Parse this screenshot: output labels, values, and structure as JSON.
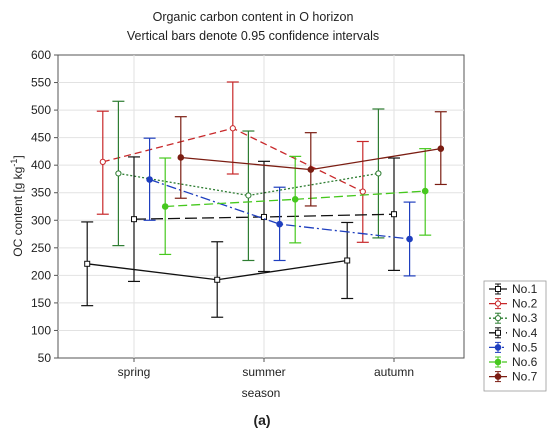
{
  "figure": {
    "caption": "(a)"
  },
  "chart_data": {
    "type": "line",
    "title": "Organic carbon content in O horizon",
    "subtitle": "Vertical bars denote 0.95 confidence intervals",
    "xlabel": "season",
    "ylabel": "OC content [g kg-1]",
    "ylabel_main": "OC content [g kg",
    "ylabel_sup": "-1",
    "ylabel_end": "]",
    "categories": [
      "spring",
      "summer",
      "autumn"
    ],
    "ylim": [
      50,
      600
    ],
    "yticks": [
      50,
      100,
      150,
      200,
      250,
      300,
      350,
      400,
      450,
      500,
      550,
      600
    ],
    "grid": true,
    "legend_placement": "right-bottom",
    "series": [
      {
        "name": "No.1",
        "color": "#111111",
        "dash": "",
        "marker": "open-square",
        "values": [
          221,
          192,
          227
        ],
        "lower": [
          145,
          124,
          158
        ],
        "upper": [
          297,
          261,
          296
        ],
        "offset": -0.36
      },
      {
        "name": "No.2",
        "color": "#c8282a",
        "dash": "7,4",
        "marker": "open-circle",
        "values": [
          406,
          467,
          352
        ],
        "lower": [
          311,
          384,
          260
        ],
        "upper": [
          498,
          551,
          443
        ],
        "offset": -0.24
      },
      {
        "name": "No.3",
        "color": "#2e7d32",
        "dash": "2,2",
        "marker": "open-circle",
        "values": [
          385,
          345,
          385
        ],
        "lower": [
          254,
          227,
          268
        ],
        "upper": [
          516,
          462,
          502
        ],
        "offset": -0.12
      },
      {
        "name": "No.4",
        "color": "#111111",
        "dash": "12,5",
        "marker": "open-square",
        "values": [
          302,
          306,
          311
        ],
        "lower": [
          189,
          207,
          209
        ],
        "upper": [
          415,
          407,
          413
        ],
        "offset": 0.0
      },
      {
        "name": "No.5",
        "color": "#1f3fbf",
        "dash": "10,3,2,3",
        "marker": "filled-circle",
        "values": [
          374,
          293,
          266
        ],
        "lower": [
          300,
          227,
          199
        ],
        "upper": [
          449,
          360,
          333
        ],
        "offset": 0.12
      },
      {
        "name": "No.6",
        "color": "#46c81e",
        "dash": "9,4",
        "marker": "filled-circle",
        "values": [
          325,
          338,
          353
        ],
        "lower": [
          238,
          259,
          273
        ],
        "upper": [
          413,
          416,
          430
        ],
        "offset": 0.24
      },
      {
        "name": "No.7",
        "color": "#7b1d12",
        "dash": "",
        "marker": "filled-circle",
        "values": [
          414,
          392,
          430
        ],
        "lower": [
          340,
          326,
          365
        ],
        "upper": [
          488,
          459,
          497
        ],
        "offset": 0.36
      }
    ]
  }
}
